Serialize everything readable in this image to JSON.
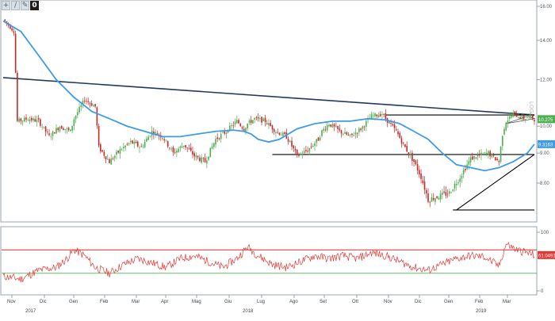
{
  "toolbar": {
    "buttons": [
      {
        "icon": "crosshair-icon",
        "glyph": "+"
      },
      {
        "icon": "line-tool-icon",
        "glyph": "∕"
      },
      {
        "icon": "pencil-icon",
        "glyph": "✎"
      },
      {
        "icon": "zero-button",
        "glyph": "0"
      }
    ]
  },
  "colors": {
    "price_up": "#4caf50",
    "price_down": "#c62828",
    "moving_average": "#3d9be9",
    "trendline": "#1f3a5f",
    "level_line": "#000000",
    "rsi": "#e53935",
    "rsi_upper": "#d32f2f",
    "rsi_lower": "#66bb6a",
    "last_price_box": "#4caf50",
    "ma_box": "#3d9be9",
    "rsi_box": "#e53935"
  },
  "chart_data": [
    {
      "type": "candlestick",
      "title": "",
      "ylim": [
        7,
        16
      ],
      "y_ticks": [
        "16.00",
        "14.00",
        "12.00",
        "10.00",
        "9.00",
        "8.00"
      ],
      "x_ticks": [
        "Nov",
        "Dic",
        "Gen",
        "Feb",
        "Mar",
        "Apr",
        "Mag",
        "Giu",
        "Lug",
        "Ago",
        "Set",
        "Ott",
        "Nov",
        "Dic",
        "Gen",
        "Feb",
        "Mar"
      ],
      "year_labels": [
        "2017",
        "2018",
        "2019"
      ],
      "last_price_label": "10.275",
      "ma_label": "9.3163",
      "side_text": "LOG",
      "price_path": [
        [
          0,
          15.2
        ],
        [
          3,
          14.5
        ],
        [
          4,
          10.2
        ],
        [
          7,
          10.3
        ],
        [
          10,
          10.2
        ],
        [
          13,
          9.6
        ],
        [
          16,
          10.0
        ],
        [
          19,
          9.8
        ],
        [
          20,
          10.3
        ],
        [
          23,
          11.1
        ],
        [
          26,
          10.8
        ],
        [
          27,
          9.2
        ],
        [
          30,
          8.7
        ],
        [
          33,
          9.1
        ],
        [
          36,
          9.4
        ],
        [
          39,
          9.2
        ],
        [
          42,
          9.8
        ],
        [
          45,
          9.6
        ],
        [
          48,
          9.0
        ],
        [
          51,
          9.3
        ],
        [
          54,
          8.9
        ],
        [
          57,
          8.7
        ],
        [
          60,
          9.5
        ],
        [
          63,
          9.8
        ],
        [
          66,
          10.2
        ],
        [
          68,
          9.9
        ],
        [
          69,
          10.1
        ],
        [
          71,
          10.3
        ],
        [
          74,
          10.2
        ],
        [
          77,
          9.8
        ],
        [
          80,
          9.6
        ],
        [
          83,
          8.9
        ],
        [
          86,
          9.1
        ],
        [
          89,
          9.5
        ],
        [
          90,
          9.8
        ],
        [
          92,
          10.1
        ],
        [
          95,
          9.8
        ],
        [
          98,
          9.6
        ],
        [
          101,
          9.9
        ],
        [
          104,
          10.4
        ],
        [
          107,
          10.5
        ],
        [
          108,
          10.3
        ],
        [
          111,
          9.8
        ],
        [
          113,
          9.3
        ],
        [
          116,
          8.7
        ],
        [
          118,
          8.2
        ],
        [
          120,
          7.5
        ],
        [
          123,
          7.6
        ],
        [
          126,
          7.7
        ],
        [
          129,
          8.2
        ],
        [
          132,
          8.8
        ],
        [
          134,
          8.9
        ],
        [
          137,
          9.0
        ],
        [
          140,
          8.7
        ],
        [
          141,
          9.7
        ],
        [
          142,
          10.2
        ],
        [
          144,
          10.5
        ],
        [
          147,
          10.3
        ],
        [
          149,
          10.4
        ],
        [
          150,
          10.28
        ]
      ],
      "moving_average_path": [
        [
          0,
          15.1
        ],
        [
          5,
          14.5
        ],
        [
          10,
          13.2
        ],
        [
          15,
          12.0
        ],
        [
          20,
          11.2
        ],
        [
          25,
          10.6
        ],
        [
          30,
          10.3
        ],
        [
          35,
          10.0
        ],
        [
          40,
          9.8
        ],
        [
          45,
          9.6
        ],
        [
          50,
          9.6
        ],
        [
          55,
          9.7
        ],
        [
          60,
          9.8
        ],
        [
          65,
          9.85
        ],
        [
          68,
          9.8
        ],
        [
          70,
          9.7
        ],
        [
          72,
          9.5
        ],
        [
          75,
          9.4
        ],
        [
          78,
          9.5
        ],
        [
          83,
          9.9
        ],
        [
          88,
          10.1
        ],
        [
          93,
          10.2
        ],
        [
          98,
          10.2
        ],
        [
          103,
          10.3
        ],
        [
          108,
          10.25
        ],
        [
          112,
          10.1
        ],
        [
          116,
          9.8
        ],
        [
          120,
          9.5
        ],
        [
          124,
          9.0
        ],
        [
          128,
          8.6
        ],
        [
          132,
          8.5
        ],
        [
          136,
          8.4
        ],
        [
          140,
          8.5
        ],
        [
          144,
          8.7
        ],
        [
          148,
          9.0
        ],
        [
          150,
          9.32
        ]
      ],
      "trendlines": [
        {
          "from": [
            0,
            12.1
          ],
          "to": [
            150,
            10.45
          ]
        },
        {
          "from": [
            128,
            7.2
          ],
          "to": [
            150,
            8.95
          ]
        }
      ],
      "levels": [
        {
          "value": 10.45,
          "from": 108,
          "to": 150
        },
        {
          "value": 8.95,
          "from": 76,
          "to": 150
        },
        {
          "value": 7.2,
          "from": 127,
          "to": 150
        }
      ],
      "small_triangle": [
        [
          142,
          10.1
        ],
        [
          148,
          10.4
        ],
        [
          150,
          10.3
        ]
      ]
    },
    {
      "type": "line",
      "indicator": "rsi",
      "ylim": [
        0,
        100
      ],
      "y_ticks": [
        "100",
        "0"
      ],
      "overbought": 70,
      "oversold": 30,
      "last_label": "61.0491",
      "values": [
        [
          0,
          25
        ],
        [
          5,
          20
        ],
        [
          10,
          35
        ],
        [
          15,
          40
        ],
        [
          18,
          55
        ],
        [
          20,
          70
        ],
        [
          23,
          60
        ],
        [
          26,
          40
        ],
        [
          30,
          30
        ],
        [
          34,
          45
        ],
        [
          38,
          55
        ],
        [
          42,
          48
        ],
        [
          46,
          40
        ],
        [
          50,
          55
        ],
        [
          54,
          60
        ],
        [
          58,
          50
        ],
        [
          62,
          40
        ],
        [
          66,
          55
        ],
        [
          69,
          75
        ],
        [
          72,
          60
        ],
        [
          76,
          45
        ],
        [
          80,
          40
        ],
        [
          84,
          50
        ],
        [
          88,
          60
        ],
        [
          92,
          55
        ],
        [
          96,
          60
        ],
        [
          100,
          55
        ],
        [
          104,
          65
        ],
        [
          108,
          60
        ],
        [
          112,
          50
        ],
        [
          116,
          40
        ],
        [
          120,
          35
        ],
        [
          124,
          45
        ],
        [
          128,
          55
        ],
        [
          132,
          60
        ],
        [
          136,
          58
        ],
        [
          140,
          42
        ],
        [
          142,
          80
        ],
        [
          145,
          70
        ],
        [
          148,
          65
        ],
        [
          150,
          61
        ]
      ]
    }
  ]
}
